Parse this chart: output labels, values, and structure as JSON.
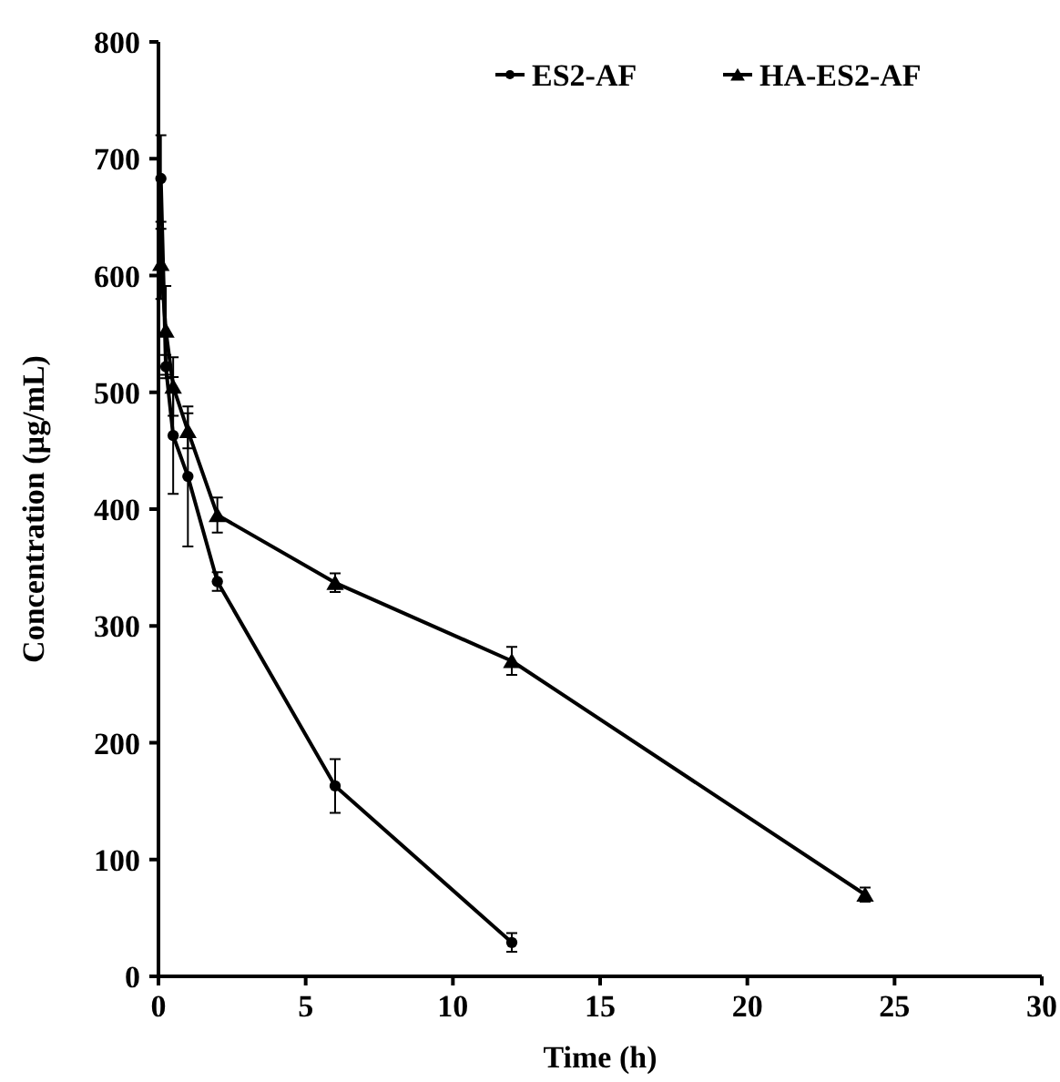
{
  "chart_data": {
    "type": "line",
    "xlabel": "Time (h)",
    "ylabel": "Concentration (µg/mL)",
    "xlim": [
      0,
      30
    ],
    "xticks": [
      0,
      5,
      10,
      15,
      20,
      25,
      30
    ],
    "ylim": [
      0,
      800
    ],
    "yticks": [
      0,
      100,
      200,
      300,
      400,
      500,
      600,
      700,
      800
    ],
    "legend": "top right",
    "grid": false,
    "series": [
      {
        "name": "ES2-AF",
        "color": "#000000",
        "marker": "circle",
        "x": [
          0.083,
          0.25,
          0.5,
          1,
          2,
          6,
          12
        ],
        "values": [
          683,
          522,
          463,
          428,
          338,
          163,
          29
        ],
        "errors": [
          37,
          10,
          50,
          60,
          8,
          23,
          8
        ]
      },
      {
        "name": "HA-ES2-AF",
        "color": "#000000",
        "marker": "triangle",
        "x": [
          0.083,
          0.25,
          0.5,
          1,
          2,
          6,
          12,
          24
        ],
        "values": [
          610,
          553,
          505,
          467,
          395,
          337,
          270,
          70
        ],
        "errors": [
          30,
          38,
          25,
          15,
          15,
          8,
          12,
          6
        ]
      }
    ]
  }
}
